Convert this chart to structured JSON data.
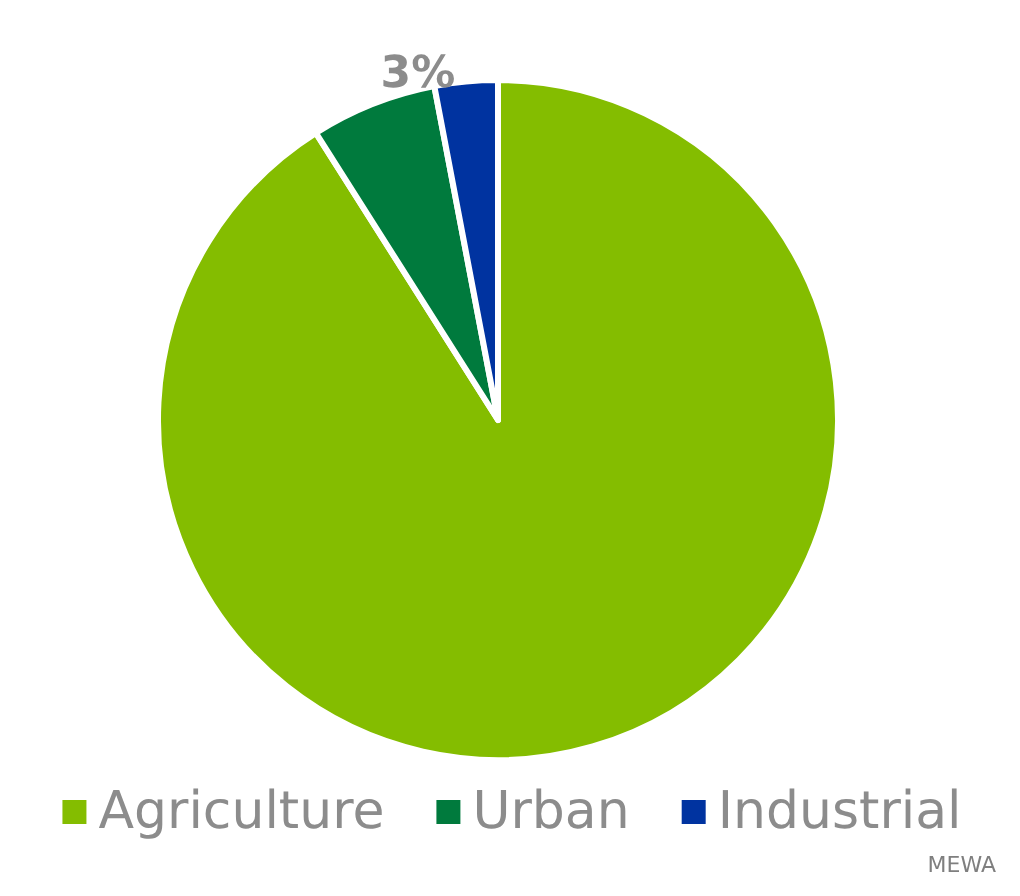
{
  "chart_data": {
    "type": "pie",
    "categories": [
      "Agriculture",
      "Urban",
      "Industrial"
    ],
    "values": [
      91,
      6,
      3
    ],
    "colors": [
      "#84bd00",
      "#007a3d",
      "#0033a0"
    ],
    "value_labels": [
      null,
      null,
      "3%"
    ],
    "legend": "bottom",
    "annotations": [
      "MEWA"
    ]
  }
}
